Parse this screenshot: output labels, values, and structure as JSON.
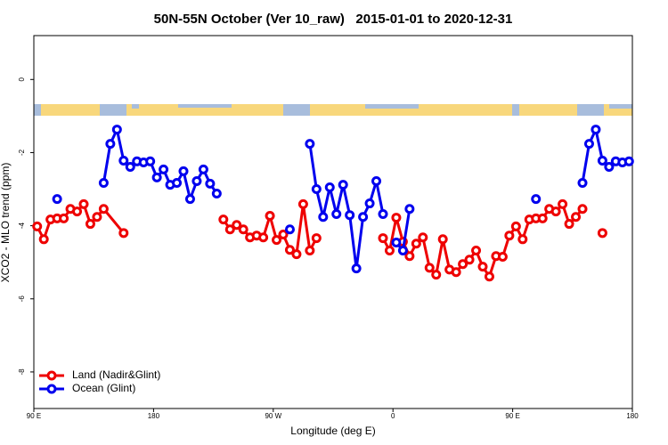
{
  "chart_data": {
    "type": "line",
    "title": "50N-55N October (Ver 10_raw)   2015-01-01 to 2020-12-31",
    "x_label": "Longitude (deg E)",
    "y_label": "XCO2 - MLO trend (ppm)",
    "xlim": [
      90,
      540
    ],
    "ylim": [
      -9,
      1.2
    ],
    "xticks": [
      {
        "value": 90,
        "label": "90 E"
      },
      180,
      {
        "value": 270,
        "label": "90 W"
      },
      {
        "value": 360,
        "label": "0"
      },
      {
        "value": 450,
        "label": "90 E"
      },
      {
        "value": 540,
        "label": "180"
      }
    ],
    "yticks": [
      0,
      -2,
      -4,
      -6,
      -8
    ],
    "legend": "bottom-left",
    "series": [
      {
        "name": "Land (Nadir&Glint)",
        "color": "#ee0000",
        "x": [
          92.5,
          97.5,
          102.5,
          107.5,
          112.5,
          117.5,
          122.5,
          127.5,
          132.5,
          137.5,
          142.5,
          157.5,
          null,
          232.5,
          237.5,
          242.5,
          247.5,
          252.5,
          257.5,
          262.5,
          267.5,
          272.5,
          277.5,
          282.5,
          287.5,
          292.5,
          297.5,
          302.5,
          null,
          352.5,
          357.5,
          362.5,
          367.5,
          372.5,
          377.5,
          382.5,
          387.5,
          392.5,
          397.5,
          402.5,
          407.5,
          412.5,
          417.5,
          422.5,
          427.5,
          432.5,
          437.5,
          442.5,
          447.5,
          452.5,
          457.5,
          462.5,
          467.5,
          472.5,
          477.5,
          482.5,
          487.5,
          492.5,
          497.5,
          502.5,
          null,
          517.5
        ],
        "values": [
          -4.02,
          -4.37,
          -3.83,
          -3.8,
          -3.8,
          -3.54,
          -3.61,
          -3.41,
          -3.95,
          -3.76,
          -3.54,
          -4.2,
          null,
          -3.83,
          -4.1,
          -3.98,
          -4.1,
          -4.32,
          -4.27,
          -4.32,
          -3.73,
          -4.39,
          -4.24,
          -4.66,
          -4.78,
          -3.41,
          -4.68,
          -4.34,
          null,
          -4.34,
          -4.68,
          -3.78,
          -4.44,
          -4.83,
          -4.49,
          -4.32,
          -5.15,
          -5.34,
          -4.37,
          -5.2,
          -5.27,
          -5.05,
          -4.93,
          -4.68,
          -5.12,
          -5.39,
          -4.83,
          -4.85,
          -4.27,
          -4.02,
          -4.37,
          -3.83,
          -3.8,
          -3.8,
          -3.54,
          -3.61,
          -3.41,
          -3.95,
          -3.76,
          -3.54,
          null,
          -4.2
        ]
      },
      {
        "name": "Ocean (Glint)",
        "color": "#0000ee",
        "x": [
          107.5,
          null,
          142.5,
          147.5,
          152.5,
          157.5,
          162.5,
          167.5,
          172.5,
          177.5,
          182.5,
          187.5,
          192.5,
          197.5,
          202.5,
          207.5,
          212.5,
          217.5,
          222.5,
          227.5,
          null,
          282.5,
          null,
          297.5,
          302.5,
          307.5,
          312.5,
          317.5,
          322.5,
          327.5,
          332.5,
          337.5,
          342.5,
          347.5,
          352.5,
          null,
          362.5,
          367.5,
          372.5,
          null,
          467.5,
          null,
          502.5,
          507.5,
          512.5,
          517.5,
          522.5,
          527.5,
          532.5,
          537.5
        ],
        "values": [
          -3.27,
          null,
          -2.83,
          -1.76,
          -1.37,
          -2.22,
          -2.39,
          -2.24,
          -2.27,
          -2.24,
          -2.68,
          -2.46,
          -2.88,
          -2.83,
          -2.51,
          -3.27,
          -2.78,
          -2.46,
          -2.85,
          -3.12,
          null,
          -4.1,
          null,
          -1.76,
          -3.0,
          -3.76,
          -2.95,
          -3.68,
          -2.88,
          -3.71,
          -5.17,
          -3.76,
          -3.39,
          -2.78,
          -3.68,
          null,
          -4.46,
          -4.68,
          -3.54,
          null,
          -3.27,
          null,
          -2.83,
          -1.76,
          -1.37,
          -2.22,
          -2.39,
          -2.24,
          -2.27,
          -2.24
        ]
      }
    ]
  }
}
